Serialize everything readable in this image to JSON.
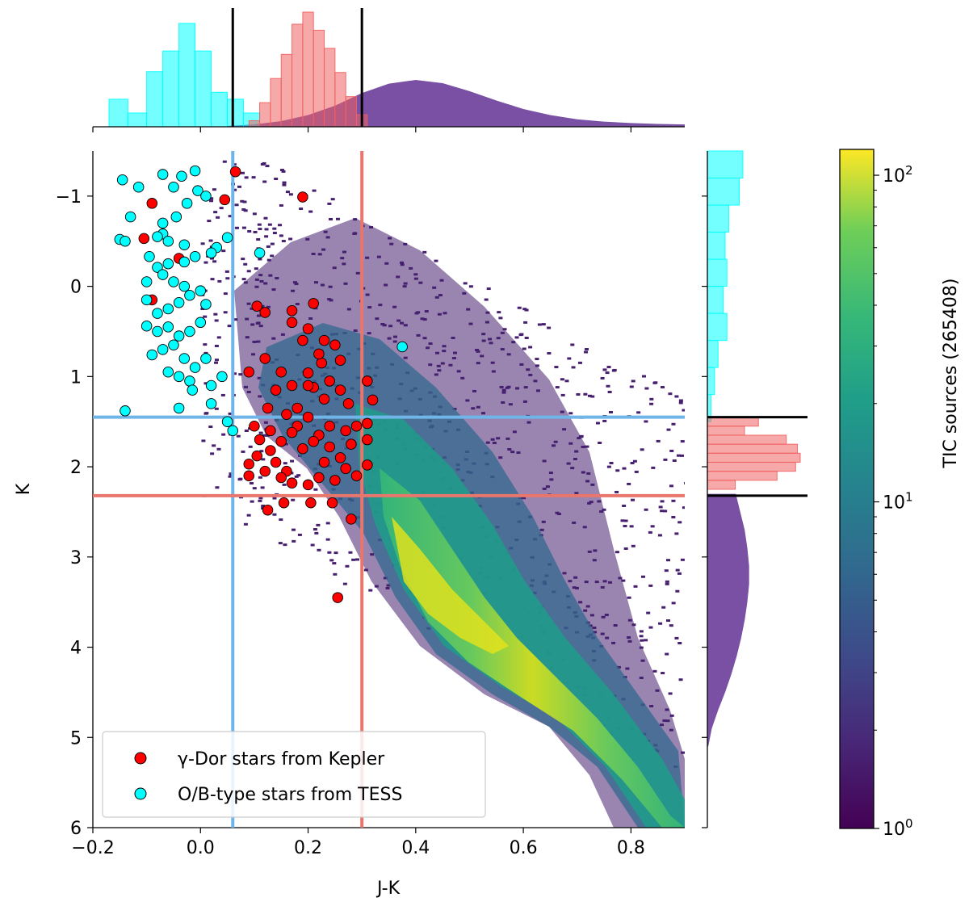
{
  "chart_data": {
    "type": "scatter",
    "title": "",
    "xlabel": "J-K",
    "ylabel": "K",
    "xlim": [
      -0.2,
      0.9
    ],
    "ylim": [
      6.0,
      -1.5
    ],
    "x_ticks": [
      -0.2,
      0.0,
      0.2,
      0.4,
      0.6,
      0.8
    ],
    "x_tick_labels": [
      "−0.2",
      "0.0",
      "0.2",
      "0.4",
      "0.6",
      "0.8"
    ],
    "y_ticks": [
      -1,
      0,
      1,
      2,
      3,
      4,
      5,
      6
    ],
    "y_tick_labels": [
      "−1",
      "0",
      "1",
      "2",
      "3",
      "4",
      "5",
      "6"
    ],
    "colorbar": {
      "label": "TIC sources (265408)",
      "scale": "log",
      "range": [
        1,
        120
      ],
      "ticks": [
        {
          "value": 1,
          "base": "10",
          "exp": "0"
        },
        {
          "value": 10,
          "base": "10",
          "exp": "1"
        },
        {
          "value": 100,
          "base": "10",
          "exp": "2"
        }
      ]
    },
    "vertical_lines": [
      {
        "x": 0.06,
        "color": "#6fb5e8"
      },
      {
        "x": 0.3,
        "color": "#e8766c"
      }
    ],
    "horizontal_lines": [
      {
        "y": 1.45,
        "color": "#6fb5e8"
      },
      {
        "y": 2.32,
        "color": "#e8766c"
      }
    ],
    "top_hist_cuts": [
      0.06,
      0.3
    ],
    "right_hist_cuts": [
      1.45,
      2.32
    ],
    "legend": {
      "location": "lower-left",
      "entries": [
        {
          "label": "γ-Dor stars from Kepler",
          "color": "#ff0000"
        },
        {
          "label": "O/B-type stars from TESS",
          "color": "#00ffff"
        }
      ]
    },
    "series": [
      {
        "name": "γ-Dor stars from Kepler",
        "color": "#ff0000",
        "points": [
          [
            0.065,
            -1.27
          ],
          [
            0.045,
            -0.96
          ],
          [
            0.19,
            -0.99
          ],
          [
            -0.09,
            -0.92
          ],
          [
            -0.105,
            -0.53
          ],
          [
            -0.04,
            -0.31
          ],
          [
            -0.09,
            0.15
          ],
          [
            0.105,
            0.22
          ],
          [
            0.12,
            0.29
          ],
          [
            0.17,
            0.27
          ],
          [
            0.21,
            0.19
          ],
          [
            0.17,
            0.4
          ],
          [
            0.2,
            0.47
          ],
          [
            0.23,
            0.6
          ],
          [
            0.25,
            0.65
          ],
          [
            0.26,
            0.82
          ],
          [
            0.225,
            0.85
          ],
          [
            0.09,
            0.95
          ],
          [
            0.2,
            0.96
          ],
          [
            0.31,
            1.05
          ],
          [
            0.17,
            1.1
          ],
          [
            0.21,
            1.12
          ],
          [
            0.32,
            1.26
          ],
          [
            0.275,
            1.3
          ],
          [
            0.125,
            1.35
          ],
          [
            0.16,
            1.42
          ],
          [
            0.2,
            1.45
          ],
          [
            0.29,
            1.55
          ],
          [
            0.31,
            1.52
          ],
          [
            0.31,
            1.7
          ],
          [
            0.27,
            2.02
          ],
          [
            0.31,
            1.98
          ],
          [
            0.29,
            2.1
          ],
          [
            0.17,
            2.18
          ],
          [
            0.105,
            1.88
          ],
          [
            0.09,
            1.97
          ],
          [
            0.09,
            2.1
          ],
          [
            0.125,
            2.48
          ],
          [
            0.155,
            2.4
          ],
          [
            0.205,
            2.4
          ],
          [
            0.245,
            2.4
          ],
          [
            0.28,
            2.58
          ],
          [
            0.255,
            3.45
          ],
          [
            0.13,
            1.6
          ],
          [
            0.15,
            1.72
          ],
          [
            0.18,
            1.55
          ],
          [
            0.22,
            1.65
          ],
          [
            0.24,
            1.78
          ],
          [
            0.26,
            1.9
          ],
          [
            0.11,
            1.7
          ],
          [
            0.14,
            1.95
          ],
          [
            0.16,
            2.05
          ],
          [
            0.19,
            1.8
          ],
          [
            0.23,
            1.95
          ],
          [
            0.25,
            2.15
          ],
          [
            0.2,
            2.2
          ],
          [
            0.12,
            2.05
          ],
          [
            0.17,
            1.62
          ],
          [
            0.27,
            1.6
          ],
          [
            0.28,
            1.75
          ],
          [
            0.1,
            1.55
          ],
          [
            0.13,
            1.82
          ],
          [
            0.21,
            1.72
          ],
          [
            0.24,
            1.55
          ],
          [
            0.15,
            2.12
          ],
          [
            0.22,
            2.12
          ],
          [
            0.18,
            1.35
          ],
          [
            0.23,
            1.25
          ],
          [
            0.2,
            1.1
          ],
          [
            0.26,
            1.15
          ],
          [
            0.14,
            1.15
          ],
          [
            0.24,
            1.05
          ],
          [
            0.15,
            0.95
          ],
          [
            0.22,
            0.75
          ],
          [
            0.12,
            0.8
          ],
          [
            0.19,
            0.6
          ]
        ]
      },
      {
        "name": "O/B-type stars from TESS",
        "color": "#00ffff",
        "points": [
          [
            -0.145,
            -1.18
          ],
          [
            -0.115,
            -1.1
          ],
          [
            -0.07,
            -1.24
          ],
          [
            -0.035,
            -1.22
          ],
          [
            -0.01,
            -1.28
          ],
          [
            -0.05,
            -1.1
          ],
          [
            -0.005,
            -1.06
          ],
          [
            0.01,
            -1.0
          ],
          [
            -0.025,
            -0.92
          ],
          [
            -0.045,
            -0.77
          ],
          [
            -0.07,
            -0.7
          ],
          [
            -0.13,
            -0.77
          ],
          [
            -0.07,
            -0.58
          ],
          [
            -0.08,
            -0.55
          ],
          [
            -0.15,
            -0.52
          ],
          [
            -0.06,
            -0.5
          ],
          [
            -0.03,
            -0.46
          ],
          [
            0.05,
            -0.54
          ],
          [
            0.03,
            -0.43
          ],
          [
            0.11,
            -0.37
          ],
          [
            -0.14,
            -0.5
          ],
          [
            -0.095,
            -0.33
          ],
          [
            -0.08,
            -0.21
          ],
          [
            -0.06,
            -0.25
          ],
          [
            -0.03,
            -0.27
          ],
          [
            -0.01,
            -0.33
          ],
          [
            0.02,
            -0.37
          ],
          [
            -0.1,
            -0.05
          ],
          [
            -0.07,
            -0.13
          ],
          [
            -0.05,
            -0.05
          ],
          [
            -0.03,
            0.0
          ],
          [
            0.0,
            0.05
          ],
          [
            -0.1,
            0.15
          ],
          [
            -0.08,
            0.3
          ],
          [
            -0.06,
            0.25
          ],
          [
            -0.04,
            0.18
          ],
          [
            -0.02,
            0.1
          ],
          [
            0.01,
            0.2
          ],
          [
            -0.1,
            0.44
          ],
          [
            -0.08,
            0.5
          ],
          [
            -0.06,
            0.45
          ],
          [
            -0.04,
            0.55
          ],
          [
            -0.02,
            0.5
          ],
          [
            0.0,
            0.4
          ],
          [
            -0.09,
            0.76
          ],
          [
            -0.07,
            0.7
          ],
          [
            -0.05,
            0.65
          ],
          [
            -0.03,
            0.8
          ],
          [
            -0.01,
            0.9
          ],
          [
            0.01,
            0.8
          ],
          [
            -0.06,
            0.95
          ],
          [
            -0.04,
            1.0
          ],
          [
            -0.02,
            1.05
          ],
          [
            0.02,
            1.1
          ],
          [
            0.04,
            1.0
          ],
          [
            -0.04,
            1.35
          ],
          [
            0.02,
            1.3
          ],
          [
            -0.015,
            1.15
          ],
          [
            0.375,
            0.67
          ],
          [
            -0.14,
            1.38
          ],
          [
            0.06,
            1.6
          ],
          [
            0.05,
            1.5
          ]
        ]
      }
    ],
    "top_histograms": [
      {
        "name": "O/B-type stars from TESS",
        "color": "#00ffff",
        "bin_edges": [
          -0.17,
          -0.135,
          -0.1,
          -0.07,
          -0.04,
          -0.01,
          0.02,
          0.05,
          0.08,
          0.11
        ],
        "counts": [
          4,
          2,
          8,
          11,
          15,
          11,
          5,
          4,
          2
        ]
      },
      {
        "name": "γ-Dor stars from Kepler",
        "color": "#f06060",
        "bin_edges": [
          0.09,
          0.11,
          0.13,
          0.15,
          0.17,
          0.19,
          0.21,
          0.23,
          0.25,
          0.27,
          0.29,
          0.31
        ],
        "counts": [
          1,
          4,
          8,
          12,
          17,
          19,
          16,
          13,
          9,
          5,
          2
        ]
      }
    ],
    "top_density": {
      "name": "TIC sources",
      "color": "#6a3d9a",
      "x": [
        0.05,
        0.1,
        0.15,
        0.2,
        0.25,
        0.3,
        0.35,
        0.4,
        0.45,
        0.5,
        0.55,
        0.6,
        0.65,
        0.7,
        0.75,
        0.8,
        0.85,
        0.9
      ],
      "y": [
        0.02,
        0.05,
        0.12,
        0.25,
        0.45,
        0.72,
        0.92,
        1.0,
        0.93,
        0.76,
        0.56,
        0.38,
        0.25,
        0.16,
        0.11,
        0.08,
        0.06,
        0.05
      ]
    },
    "right_histograms": [
      {
        "name": "O/B-type stars from TESS",
        "color": "#00ffff",
        "bin_edges": [
          -1.5,
          -1.2,
          -0.9,
          -0.6,
          -0.3,
          0.0,
          0.3,
          0.6,
          0.9,
          1.2,
          1.5
        ],
        "counts": [
          1,
          0.9,
          0.6,
          0.5,
          0.55,
          0.45,
          0.55,
          0.3,
          0.2,
          0.1
        ]
      },
      {
        "name": "γ-Dor stars from Kepler",
        "color": "#f06060",
        "bin_edges": [
          1.45,
          1.55,
          1.65,
          1.75,
          1.85,
          1.95,
          2.05,
          2.15,
          2.25
        ],
        "counts": [
          0.55,
          0.4,
          0.85,
          0.97,
          1.0,
          0.95,
          0.75,
          0.3
        ]
      }
    ],
    "right_density": {
      "name": "TIC sources",
      "color": "#6a3d9a",
      "y": [
        2.3,
        2.5,
        2.7,
        2.9,
        3.1,
        3.3,
        3.5,
        3.7,
        3.9,
        4.1,
        4.3,
        4.5,
        4.7,
        4.9,
        5.1
      ],
      "x": [
        0.32,
        0.37,
        0.42,
        0.45,
        0.47,
        0.47,
        0.45,
        0.42,
        0.38,
        0.33,
        0.27,
        0.2,
        0.12,
        0.05,
        0.01
      ]
    }
  }
}
